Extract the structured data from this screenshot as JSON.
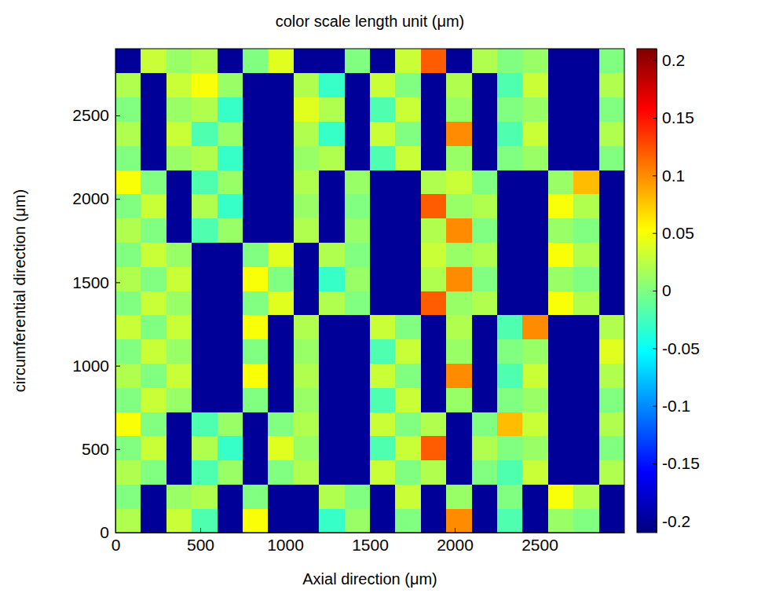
{
  "chart_data": {
    "type": "heatmap",
    "title": "color scale length unit (μm)",
    "x_label": "Axial direction (μm)",
    "y_label": "circumferential direction (μm)",
    "color": "jet",
    "xlim": [
      0,
      3000
    ],
    "ylim": [
      0,
      2900
    ],
    "xticks": [
      0,
      500,
      1000,
      1500,
      2000,
      2500
    ],
    "yticks": [
      0,
      500,
      1000,
      1500,
      2000,
      2500
    ],
    "x": [
      75,
      225,
      375,
      525,
      675,
      825,
      975,
      1125,
      1275,
      1425,
      1575,
      1725,
      1875,
      2025,
      2175,
      2325,
      2475,
      2625,
      2775,
      2925
    ],
    "y": [
      72.5,
      217.5,
      362.5,
      507.5,
      652.5,
      797.5,
      942.5,
      1087.5,
      1232.5,
      1377.5,
      1522.5,
      1667.5,
      1812.5,
      1957.5,
      2102.5,
      2247.5,
      2392.5,
      2537.5,
      2682.5,
      2827.5
    ],
    "cells": [
      [
        0.02,
        -0.2,
        0.03,
        -0.02,
        -0.2,
        0.05,
        -0.2,
        -0.2,
        -0.03,
        0.01,
        -0.2,
        0,
        -0.2,
        0.1,
        -0.2,
        -0.02,
        -0.2,
        0.01,
        0,
        -0.2
      ],
      [
        0,
        -0.2,
        0.01,
        0.02,
        -0.2,
        0,
        -0.2,
        -0.2,
        0.02,
        0,
        -0.2,
        0.03,
        -0.2,
        0.01,
        -0.2,
        0,
        -0.2,
        0.05,
        0.02,
        -0.2
      ],
      [
        0.02,
        0,
        -0.2,
        -0.02,
        0.01,
        -0.2,
        0,
        0.02,
        -0.2,
        -0.2,
        0.03,
        0,
        0.02,
        -0.2,
        0,
        -0.02,
        0.03,
        -0.2,
        -0.2,
        0.02
      ],
      [
        0,
        0.03,
        -0.2,
        0.02,
        -0.03,
        -0.2,
        0.04,
        0.01,
        -0.2,
        -0.2,
        -0.02,
        0.03,
        0.12,
        -0.2,
        0.02,
        0,
        0.01,
        -0.2,
        -0.2,
        0
      ],
      [
        0.05,
        0,
        -0.2,
        -0.02,
        0.01,
        -0.2,
        0,
        0.02,
        -0.2,
        -0.2,
        0.03,
        0,
        0.02,
        -0.2,
        0,
        0.08,
        0.03,
        -0.2,
        -0.2,
        0.02
      ],
      [
        0,
        0.03,
        0.01,
        -0.2,
        -0.2,
        0,
        -0.2,
        0.01,
        -0.2,
        -0.2,
        -0.02,
        0.03,
        -0.2,
        0.01,
        -0.2,
        0,
        0.01,
        -0.2,
        -0.2,
        0
      ],
      [
        0.02,
        0,
        0.03,
        -0.2,
        -0.2,
        0.05,
        -0.2,
        0.02,
        -0.2,
        -0.2,
        0.03,
        0,
        -0.2,
        0.1,
        -0.2,
        -0.02,
        0.03,
        -0.2,
        -0.2,
        0.02
      ],
      [
        0,
        0.03,
        0.01,
        -0.2,
        -0.2,
        0,
        -0.2,
        0.01,
        -0.2,
        -0.2,
        -0.02,
        0.03,
        -0.2,
        0.01,
        -0.2,
        0,
        0.01,
        -0.2,
        -0.2,
        0.04
      ],
      [
        0.03,
        0,
        0.03,
        -0.2,
        -0.2,
        0.05,
        -0.2,
        0.02,
        -0.2,
        -0.2,
        0.03,
        0,
        -0.2,
        0.02,
        -0.2,
        -0.02,
        0.1,
        -0.2,
        -0.2,
        0.02
      ],
      [
        0,
        0.03,
        0.01,
        -0.2,
        -0.2,
        0,
        0.04,
        -0.2,
        0.02,
        0,
        -0.2,
        -0.2,
        0.12,
        0.01,
        0.02,
        -0.2,
        -0.2,
        0.05,
        0.02,
        -0.2
      ],
      [
        0.02,
        0,
        0.03,
        -0.2,
        -0.2,
        0.05,
        0,
        -0.2,
        -0.03,
        0.01,
        -0.2,
        -0.2,
        0.02,
        0.1,
        0,
        -0.2,
        -0.2,
        0.01,
        0,
        -0.2
      ],
      [
        0,
        0.03,
        0.01,
        -0.2,
        -0.2,
        0,
        0.04,
        -0.2,
        0.02,
        0,
        -0.2,
        -0.2,
        0.03,
        0.01,
        0.02,
        -0.2,
        -0.2,
        0.05,
        0.02,
        -0.2
      ],
      [
        0.02,
        0,
        -0.2,
        -0.02,
        0.01,
        -0.2,
        -0.2,
        0.02,
        -0.2,
        0.01,
        -0.2,
        -0.2,
        0.02,
        0.1,
        0,
        -0.2,
        -0.2,
        0.01,
        0,
        -0.2
      ],
      [
        0,
        0.03,
        -0.2,
        0.02,
        -0.03,
        -0.2,
        -0.2,
        0.01,
        -0.2,
        0,
        -0.2,
        -0.2,
        0.12,
        0.01,
        0.02,
        -0.2,
        -0.2,
        0.05,
        0.02,
        -0.2
      ],
      [
        0.05,
        0,
        -0.2,
        -0.02,
        0.01,
        -0.2,
        -0.2,
        0.02,
        -0.2,
        0.01,
        -0.2,
        -0.2,
        0.02,
        0.03,
        0,
        -0.2,
        -0.2,
        0.01,
        0.08,
        -0.2
      ],
      [
        0,
        -0.2,
        0.01,
        0.02,
        -0.03,
        -0.2,
        -0.2,
        0.01,
        0.02,
        -0.2,
        -0.02,
        0.03,
        -0.2,
        0.01,
        -0.2,
        0,
        0.01,
        -0.2,
        -0.2,
        0
      ],
      [
        0.02,
        -0.2,
        0.03,
        -0.02,
        0.01,
        -0.2,
        -0.2,
        0.02,
        -0.03,
        -0.2,
        0.03,
        0,
        -0.2,
        0.1,
        -0.2,
        -0.02,
        0.03,
        -0.2,
        -0.2,
        0.02
      ],
      [
        0,
        -0.2,
        0.01,
        0.02,
        -0.03,
        -0.2,
        -0.2,
        0.04,
        0.02,
        -0.2,
        -0.02,
        0.03,
        -0.2,
        0.01,
        -0.2,
        0,
        0.01,
        -0.2,
        -0.2,
        0
      ],
      [
        0.02,
        -0.2,
        0.03,
        0.05,
        0.01,
        -0.2,
        -0.2,
        0.02,
        -0.03,
        -0.2,
        0.03,
        0,
        -0.2,
        0.02,
        -0.2,
        -0.02,
        0.03,
        -0.2,
        -0.2,
        0.02
      ],
      [
        -0.2,
        0.03,
        0.01,
        0.02,
        -0.2,
        0,
        0.04,
        -0.2,
        -0.2,
        0,
        -0.2,
        0.03,
        0.12,
        -0.2,
        0.02,
        0,
        0.01,
        -0.2,
        -0.2,
        0
      ]
    ],
    "color_range": [
      -0.21,
      0.21
    ],
    "color_ticks": [
      -0.2,
      -0.15,
      -0.1,
      -0.05,
      0,
      0.05,
      0.1,
      0.15,
      0.2
    ]
  }
}
